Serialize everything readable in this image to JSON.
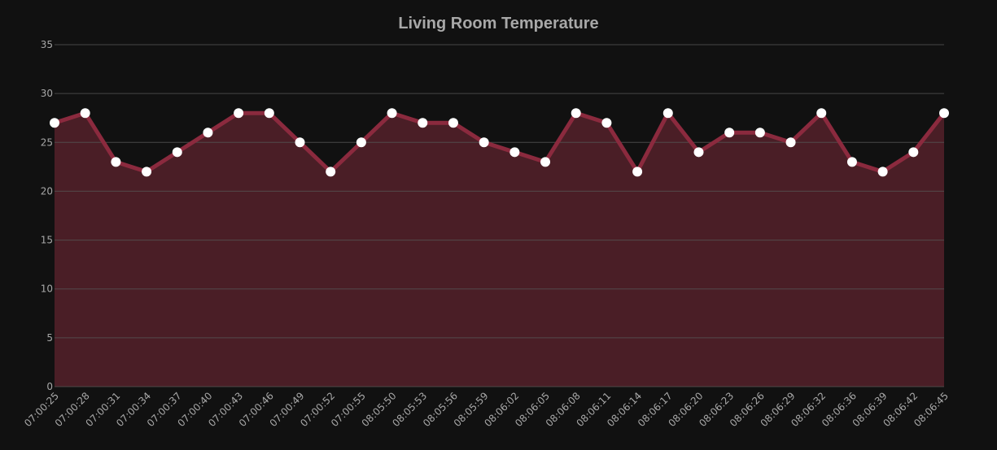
{
  "colors": {
    "background": "#111111",
    "line": "#8b2a3e",
    "fill": "#4a1e26",
    "point": "#ffffff",
    "grid": "#555555",
    "text": "#a8a8a8"
  },
  "chart_data": {
    "type": "area",
    "title": "Living Room Temperature",
    "xlabel": "",
    "ylabel": "",
    "ylim": [
      0,
      35
    ],
    "yticks": [
      0,
      5,
      10,
      15,
      20,
      25,
      30,
      35
    ],
    "grid": true,
    "legend": "none",
    "categories": [
      "07:00:25",
      "07:00:28",
      "07:00:31",
      "07:00:34",
      "07:00:37",
      "07:00:40",
      "07:00:43",
      "07:00:46",
      "07:00:49",
      "07:00:52",
      "07:00:55",
      "08:05:50",
      "08:05:53",
      "08:05:56",
      "08:05:59",
      "08:06:02",
      "08:06:05",
      "08:06:08",
      "08:06:11",
      "08:06:14",
      "08:06:17",
      "08:06:20",
      "08:06:23",
      "08:06:26",
      "08:06:29",
      "08:06:32",
      "08:06:36",
      "08:06:39",
      "08:06:42",
      "08:06:45"
    ],
    "values": [
      27,
      28,
      23,
      22,
      24,
      26,
      28,
      28,
      25,
      22,
      25,
      28,
      27,
      27,
      25,
      24,
      23,
      28,
      27,
      22,
      28,
      24,
      26,
      26,
      25,
      28,
      23,
      22,
      24,
      28
    ]
  }
}
